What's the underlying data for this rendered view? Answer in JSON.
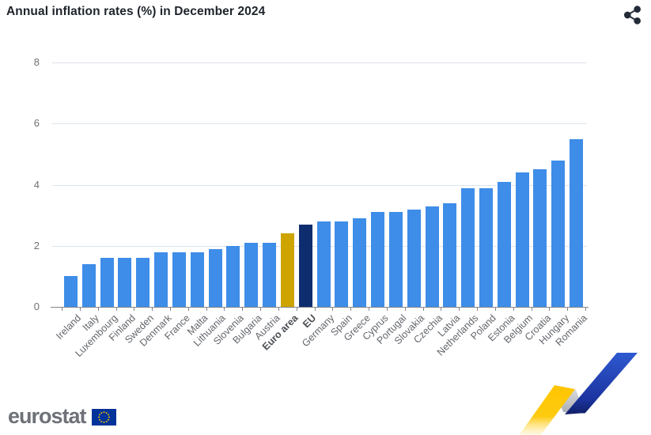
{
  "header": {
    "title": "Annual inflation rates (%) in December 2024"
  },
  "toolbar": {
    "share_icon": "share-icon"
  },
  "chart_data": {
    "type": "bar",
    "title": "Annual inflation rates (%) in December 2024",
    "ylabel": "",
    "xlabel": "",
    "categories": [
      "Ireland",
      "Italy",
      "Luxembourg",
      "Finland",
      "Sweden",
      "Denmark",
      "France",
      "Malta",
      "Lithuania",
      "Slovenia",
      "Bulgaria",
      "Austria",
      "Euro area",
      "EU",
      "Germany",
      "Spain",
      "Greece",
      "Cyprus",
      "Portugal",
      "Slovakia",
      "Czechia",
      "Latvia",
      "Netherlands",
      "Poland",
      "Estonia",
      "Belgium",
      "Croatia",
      "Hungary",
      "Romania"
    ],
    "values": [
      1.0,
      1.4,
      1.6,
      1.6,
      1.6,
      1.8,
      1.8,
      1.8,
      1.9,
      2.0,
      2.1,
      2.1,
      2.4,
      2.7,
      2.8,
      2.8,
      2.9,
      3.1,
      3.1,
      3.2,
      3.3,
      3.4,
      3.9,
      3.9,
      4.1,
      4.4,
      4.5,
      4.8,
      5.5
    ],
    "ylim": [
      0,
      8.5
    ],
    "yticks": [
      0,
      2,
      4,
      6,
      8
    ],
    "grid": true,
    "legend_position": "none",
    "bar_color_default": "#3E8DE8",
    "highlights": {
      "Euro area": "#CDA400",
      "EU": "#0E2D6E"
    },
    "bold_labels": [
      "Euro area",
      "EU"
    ]
  },
  "footer": {
    "brand": "eurostat"
  }
}
